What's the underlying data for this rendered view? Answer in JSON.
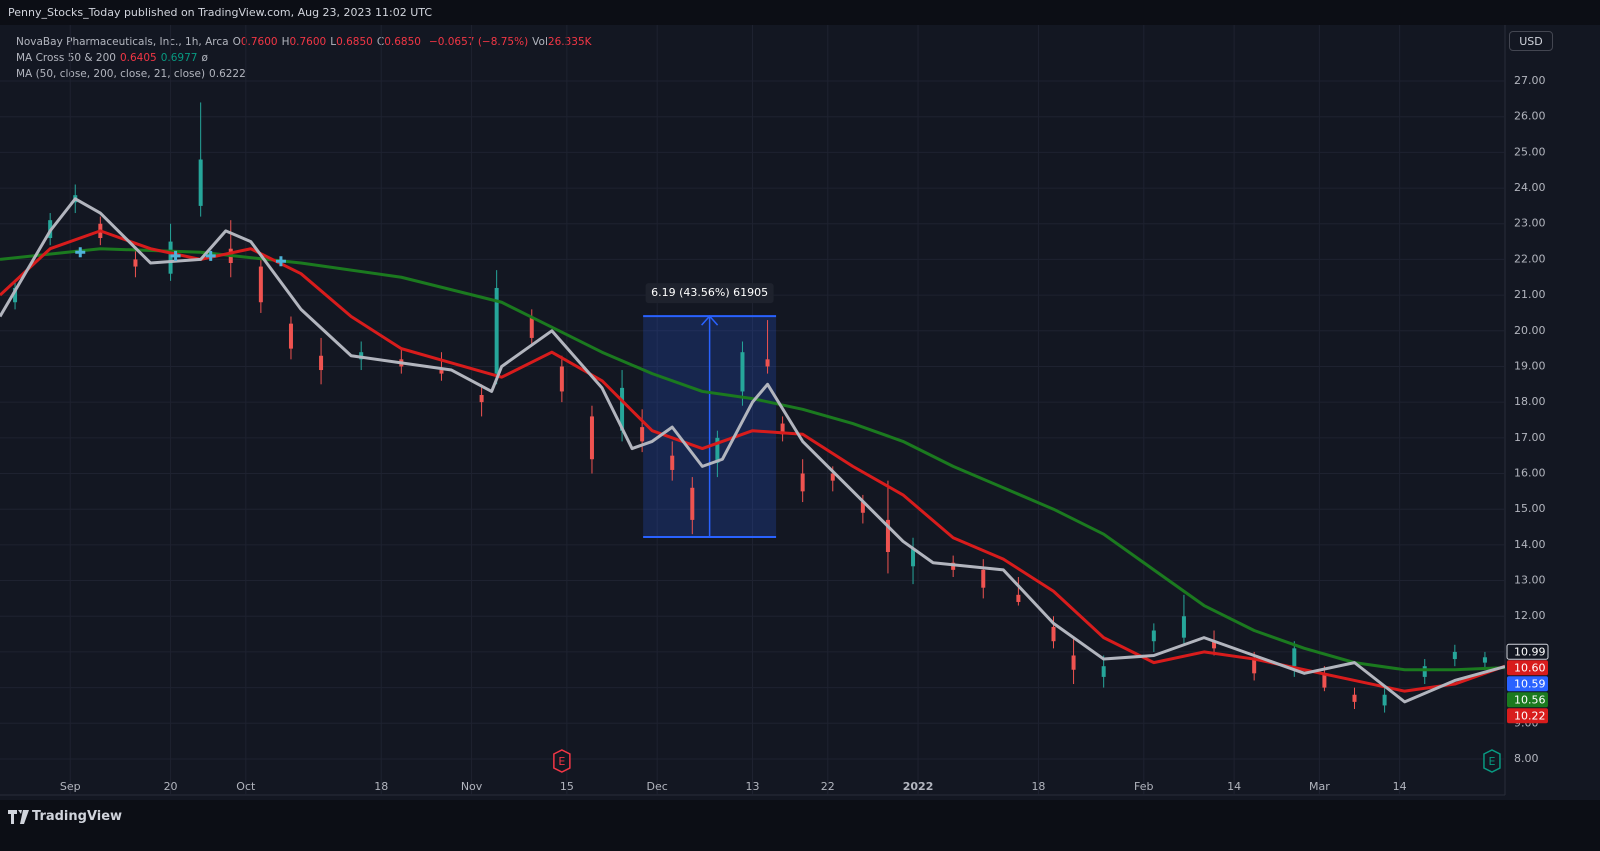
{
  "header": {
    "text": "Penny_Stocks_Today published on TradingView.com, Aug 23, 2023 11:02 UTC"
  },
  "legend": {
    "symbol": "NovaBay Pharmaceuticals, Inc., 1h, Arca",
    "ohlc": [
      {
        "key": "O",
        "value": "0.7600"
      },
      {
        "key": "H",
        "value": "0.7600"
      },
      {
        "key": "L",
        "value": "0.6850"
      },
      {
        "key": "C",
        "value": "0.6850"
      }
    ],
    "change": "−0.0657 (−8.75%)",
    "vol_key": "Vol",
    "vol": "26.335K",
    "ma_cross": {
      "name": "MA Cross 50 & 200",
      "values": [
        "0.6405",
        "0.6977"
      ],
      "symbol": "ø"
    },
    "ma": {
      "name": "MA (50, close, 200, close, 21, close)",
      "value": "0.6222"
    }
  },
  "currency": "USD",
  "brand": "TradingView",
  "chart_data": {
    "type": "candlestick",
    "xlim": [
      0,
      300
    ],
    "xticks": [
      {
        "value": 14,
        "label": "Sep"
      },
      {
        "value": 34,
        "label": "20"
      },
      {
        "value": 49,
        "label": "Oct"
      },
      {
        "value": 76,
        "label": "18"
      },
      {
        "value": 94,
        "label": "Nov"
      },
      {
        "value": 113,
        "label": "15"
      },
      {
        "value": 131,
        "label": "Dec"
      },
      {
        "value": 150,
        "label": "13"
      },
      {
        "value": 165,
        "label": "22"
      },
      {
        "value": 183,
        "label": "2022"
      },
      {
        "value": 207,
        "label": "18"
      },
      {
        "value": 228,
        "label": "Feb"
      },
      {
        "value": 246,
        "label": "14"
      },
      {
        "value": 263,
        "label": "Mar"
      },
      {
        "value": 279,
        "label": "14"
      }
    ],
    "ylim": [
      6.99,
      28.57
    ],
    "yticks": [
      {
        "value": 8,
        "label": "8.00"
      },
      {
        "value": 9,
        "label": "9.00"
      },
      {
        "value": 10,
        "label": "10.00"
      },
      {
        "value": 11,
        "label": "11.00"
      },
      {
        "value": 12,
        "label": "12.00"
      },
      {
        "value": 13,
        "label": "13.00"
      },
      {
        "value": 14,
        "label": "14.00"
      },
      {
        "value": 15,
        "label": "15.00"
      },
      {
        "value": 16,
        "label": "16.00"
      },
      {
        "value": 17,
        "label": "17.00"
      },
      {
        "value": 18,
        "label": "18.00"
      },
      {
        "value": 19,
        "label": "19.00"
      },
      {
        "value": 20,
        "label": "20.00"
      },
      {
        "value": 21,
        "label": "21.00"
      },
      {
        "value": 22,
        "label": "22.00"
      },
      {
        "value": 23,
        "label": "23.00"
      },
      {
        "value": 24,
        "label": "24.00"
      },
      {
        "value": 25,
        "label": "25.00"
      },
      {
        "value": 26,
        "label": "26.00"
      },
      {
        "value": 27,
        "label": "27.00"
      }
    ],
    "grid": true,
    "up_color": "#26a69a",
    "down_color": "#ef5350",
    "candles": {
      "x": [
        3,
        10,
        15,
        20,
        27,
        34,
        40,
        46,
        52,
        58,
        64,
        72,
        80,
        88,
        96,
        99,
        106,
        112,
        118,
        124,
        128,
        134,
        138,
        143,
        148,
        153,
        156,
        160,
        166,
        172,
        177,
        182,
        190,
        196,
        203,
        210,
        214,
        220,
        230,
        236,
        242,
        250,
        258,
        264,
        270,
        276,
        284,
        290,
        296
      ],
      "open": [
        20.8,
        22.6,
        23.6,
        23.0,
        22.0,
        21.6,
        23.5,
        22.3,
        21.8,
        20.2,
        19.3,
        19.2,
        19.2,
        18.9,
        18.2,
        18.8,
        20.4,
        19.0,
        17.6,
        17.2,
        17.3,
        16.5,
        15.6,
        16.3,
        18.3,
        19.2,
        17.4,
        16.0,
        16.0,
        15.2,
        14.7,
        13.4,
        13.5,
        13.3,
        12.6,
        11.7,
        10.9,
        10.3,
        11.3,
        11.4,
        11.3,
        10.8,
        10.6,
        10.4,
        9.8,
        9.5,
        10.3,
        10.8,
        10.7
      ],
      "high": [
        21.4,
        23.3,
        24.1,
        23.2,
        22.3,
        23.0,
        26.4,
        23.1,
        22.0,
        20.4,
        19.8,
        19.7,
        19.5,
        19.4,
        18.5,
        21.7,
        20.6,
        19.3,
        17.9,
        18.9,
        17.8,
        16.9,
        15.9,
        17.2,
        19.7,
        20.3,
        17.6,
        16.4,
        16.2,
        15.4,
        15.8,
        14.2,
        13.7,
        13.6,
        13.1,
        12.0,
        11.4,
        10.9,
        11.8,
        12.6,
        11.6,
        11.0,
        11.3,
        10.6,
        10.0,
        10.0,
        10.8,
        11.2,
        11.0
      ],
      "low": [
        20.6,
        22.4,
        23.3,
        22.4,
        21.5,
        21.4,
        23.2,
        21.5,
        20.5,
        19.2,
        18.5,
        18.9,
        18.8,
        18.6,
        17.6,
        18.5,
        19.6,
        18.0,
        16.0,
        16.9,
        16.6,
        15.8,
        14.3,
        15.9,
        17.9,
        18.8,
        16.9,
        15.2,
        15.5,
        14.6,
        13.2,
        12.9,
        13.1,
        12.5,
        12.3,
        11.1,
        10.1,
        10.0,
        11.0,
        11.2,
        10.9,
        10.2,
        10.3,
        9.9,
        9.4,
        9.3,
        10.1,
        10.6,
        10.5
      ],
      "close": [
        21.2,
        23.1,
        23.8,
        22.6,
        21.8,
        22.5,
        24.8,
        21.9,
        20.8,
        19.5,
        18.9,
        19.4,
        19.0,
        18.8,
        18.0,
        21.2,
        19.8,
        18.3,
        16.4,
        18.4,
        16.9,
        16.1,
        14.7,
        17.0,
        19.4,
        19.0,
        17.1,
        15.5,
        15.8,
        14.9,
        13.8,
        13.9,
        13.3,
        12.8,
        12.4,
        11.3,
        10.5,
        10.6,
        11.6,
        12.0,
        11.1,
        10.4,
        11.1,
        10.0,
        9.6,
        9.8,
        10.6,
        11.0,
        10.85
      ]
    },
    "series": [
      {
        "color": "#1b7a1f",
        "x": [
          0,
          20,
          40,
          60,
          80,
          100,
          110,
          120,
          130,
          140,
          150,
          160,
          170,
          180,
          190,
          200,
          210,
          220,
          230,
          240,
          250,
          260,
          270,
          280,
          290,
          300
        ],
        "values": [
          22.0,
          22.3,
          22.2,
          21.9,
          21.5,
          20.8,
          20.1,
          19.4,
          18.8,
          18.3,
          18.1,
          17.8,
          17.4,
          16.9,
          16.2,
          15.6,
          15.0,
          14.3,
          13.3,
          12.3,
          11.6,
          11.1,
          10.7,
          10.5,
          10.5,
          10.56
        ]
      },
      {
        "color": "#d81c1c",
        "x": [
          0,
          10,
          20,
          30,
          40,
          50,
          60,
          70,
          80,
          90,
          100,
          110,
          120,
          130,
          140,
          150,
          160,
          170,
          180,
          190,
          200,
          210,
          220,
          230,
          240,
          250,
          260,
          270,
          280,
          290,
          300
        ],
        "values": [
          21.0,
          22.3,
          22.8,
          22.3,
          22.0,
          22.3,
          21.6,
          20.4,
          19.5,
          19.1,
          18.7,
          19.4,
          18.6,
          17.2,
          16.7,
          17.2,
          17.1,
          16.2,
          15.4,
          14.2,
          13.6,
          12.7,
          11.4,
          10.7,
          11.0,
          10.8,
          10.5,
          10.2,
          9.9,
          10.1,
          10.6
        ]
      },
      {
        "color": "#b2b5be",
        "x": [
          0,
          10,
          15,
          20,
          30,
          40,
          45,
          50,
          60,
          70,
          80,
          90,
          98,
          100,
          110,
          120,
          126,
          130,
          134,
          140,
          144,
          150,
          153,
          160,
          170,
          180,
          186,
          200,
          210,
          220,
          230,
          240,
          250,
          260,
          270,
          280,
          290,
          300
        ],
        "values": [
          20.4,
          22.8,
          23.7,
          23.3,
          21.9,
          22.0,
          22.8,
          22.5,
          20.6,
          19.3,
          19.1,
          18.9,
          18.3,
          19.0,
          20.0,
          18.4,
          16.7,
          16.9,
          17.3,
          16.2,
          16.4,
          18.0,
          18.5,
          16.9,
          15.5,
          14.1,
          13.5,
          13.3,
          11.8,
          10.8,
          10.9,
          11.4,
          10.9,
          10.4,
          10.7,
          9.6,
          10.2,
          10.59
        ]
      }
    ],
    "markers": {
      "color": "#4fb3d9",
      "x": [
        16,
        35,
        42,
        56
      ],
      "values": [
        22.2,
        22.1,
        22.1,
        21.95
      ]
    },
    "measure": {
      "text": "6.19 (43.56%) 61905",
      "x": [
        128.2,
        154.7
      ],
      "values": [
        14.22,
        20.41
      ],
      "color": "#2962ff"
    },
    "earnings": {
      "label": "E",
      "x": [
        112,
        297.4
      ],
      "colors": [
        "#f23645",
        "#089981"
      ]
    },
    "price_tags": [
      {
        "value": 10.99,
        "label": "10.99",
        "color": "#131722",
        "border": "#d1d4dc"
      },
      {
        "value": 10.6,
        "label": "10.60",
        "color": "#d81c1c"
      },
      {
        "value": 10.59,
        "label": "10.59",
        "color": "#2962ff"
      },
      {
        "value": 10.56,
        "label": "10.56",
        "color": "#1b7a1f"
      },
      {
        "value": 10.22,
        "label": "10.22",
        "color": "#d81c1c"
      }
    ]
  }
}
